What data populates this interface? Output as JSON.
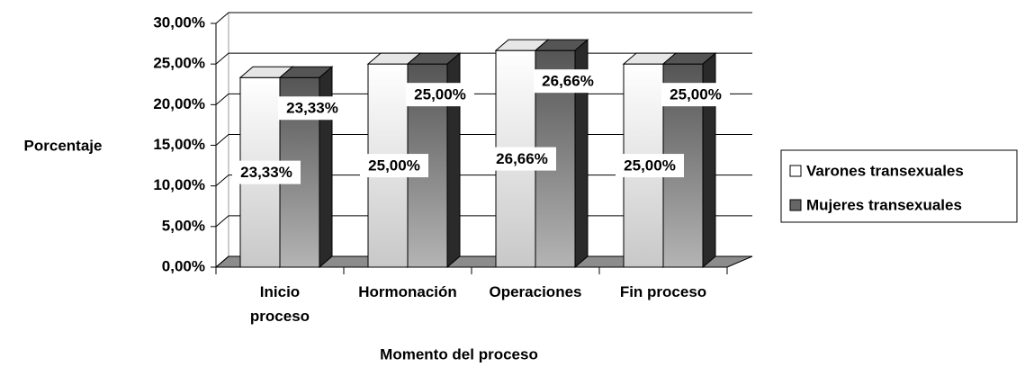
{
  "chart_data": {
    "type": "bar3d",
    "y_label": "Porcentaje",
    "x_label": "Momento del proceso",
    "categories": [
      "Inicio proceso",
      "Hormonación",
      "Operaciones",
      "Fin proceso"
    ],
    "series": [
      {
        "name": "Varones transexuales",
        "color": "#ffffff",
        "values": [
          23.33,
          25,
          26.66,
          25
        ],
        "value_labels": [
          "23,33%",
          "25,00%",
          "26,66%",
          "25,00%"
        ]
      },
      {
        "name": "Mujeres transexuales",
        "color": "#666666",
        "values": [
          23.33,
          25,
          26.66,
          25
        ],
        "value_labels": [
          "23,33%",
          "25,00%",
          "26,66%",
          "25,00%"
        ]
      }
    ],
    "ylim": [
      0,
      30
    ],
    "yticks": [
      {
        "value": 0,
        "label": "0,00%"
      },
      {
        "value": 5,
        "label": "5,00%"
      },
      {
        "value": 10,
        "label": "10,00%"
      },
      {
        "value": 15,
        "label": "15,00%"
      },
      {
        "value": 20,
        "label": "20,00%"
      },
      {
        "value": 25,
        "label": "25,00%"
      },
      {
        "value": 30,
        "label": "30,00%"
      }
    ],
    "grid": true,
    "legend": "right"
  }
}
